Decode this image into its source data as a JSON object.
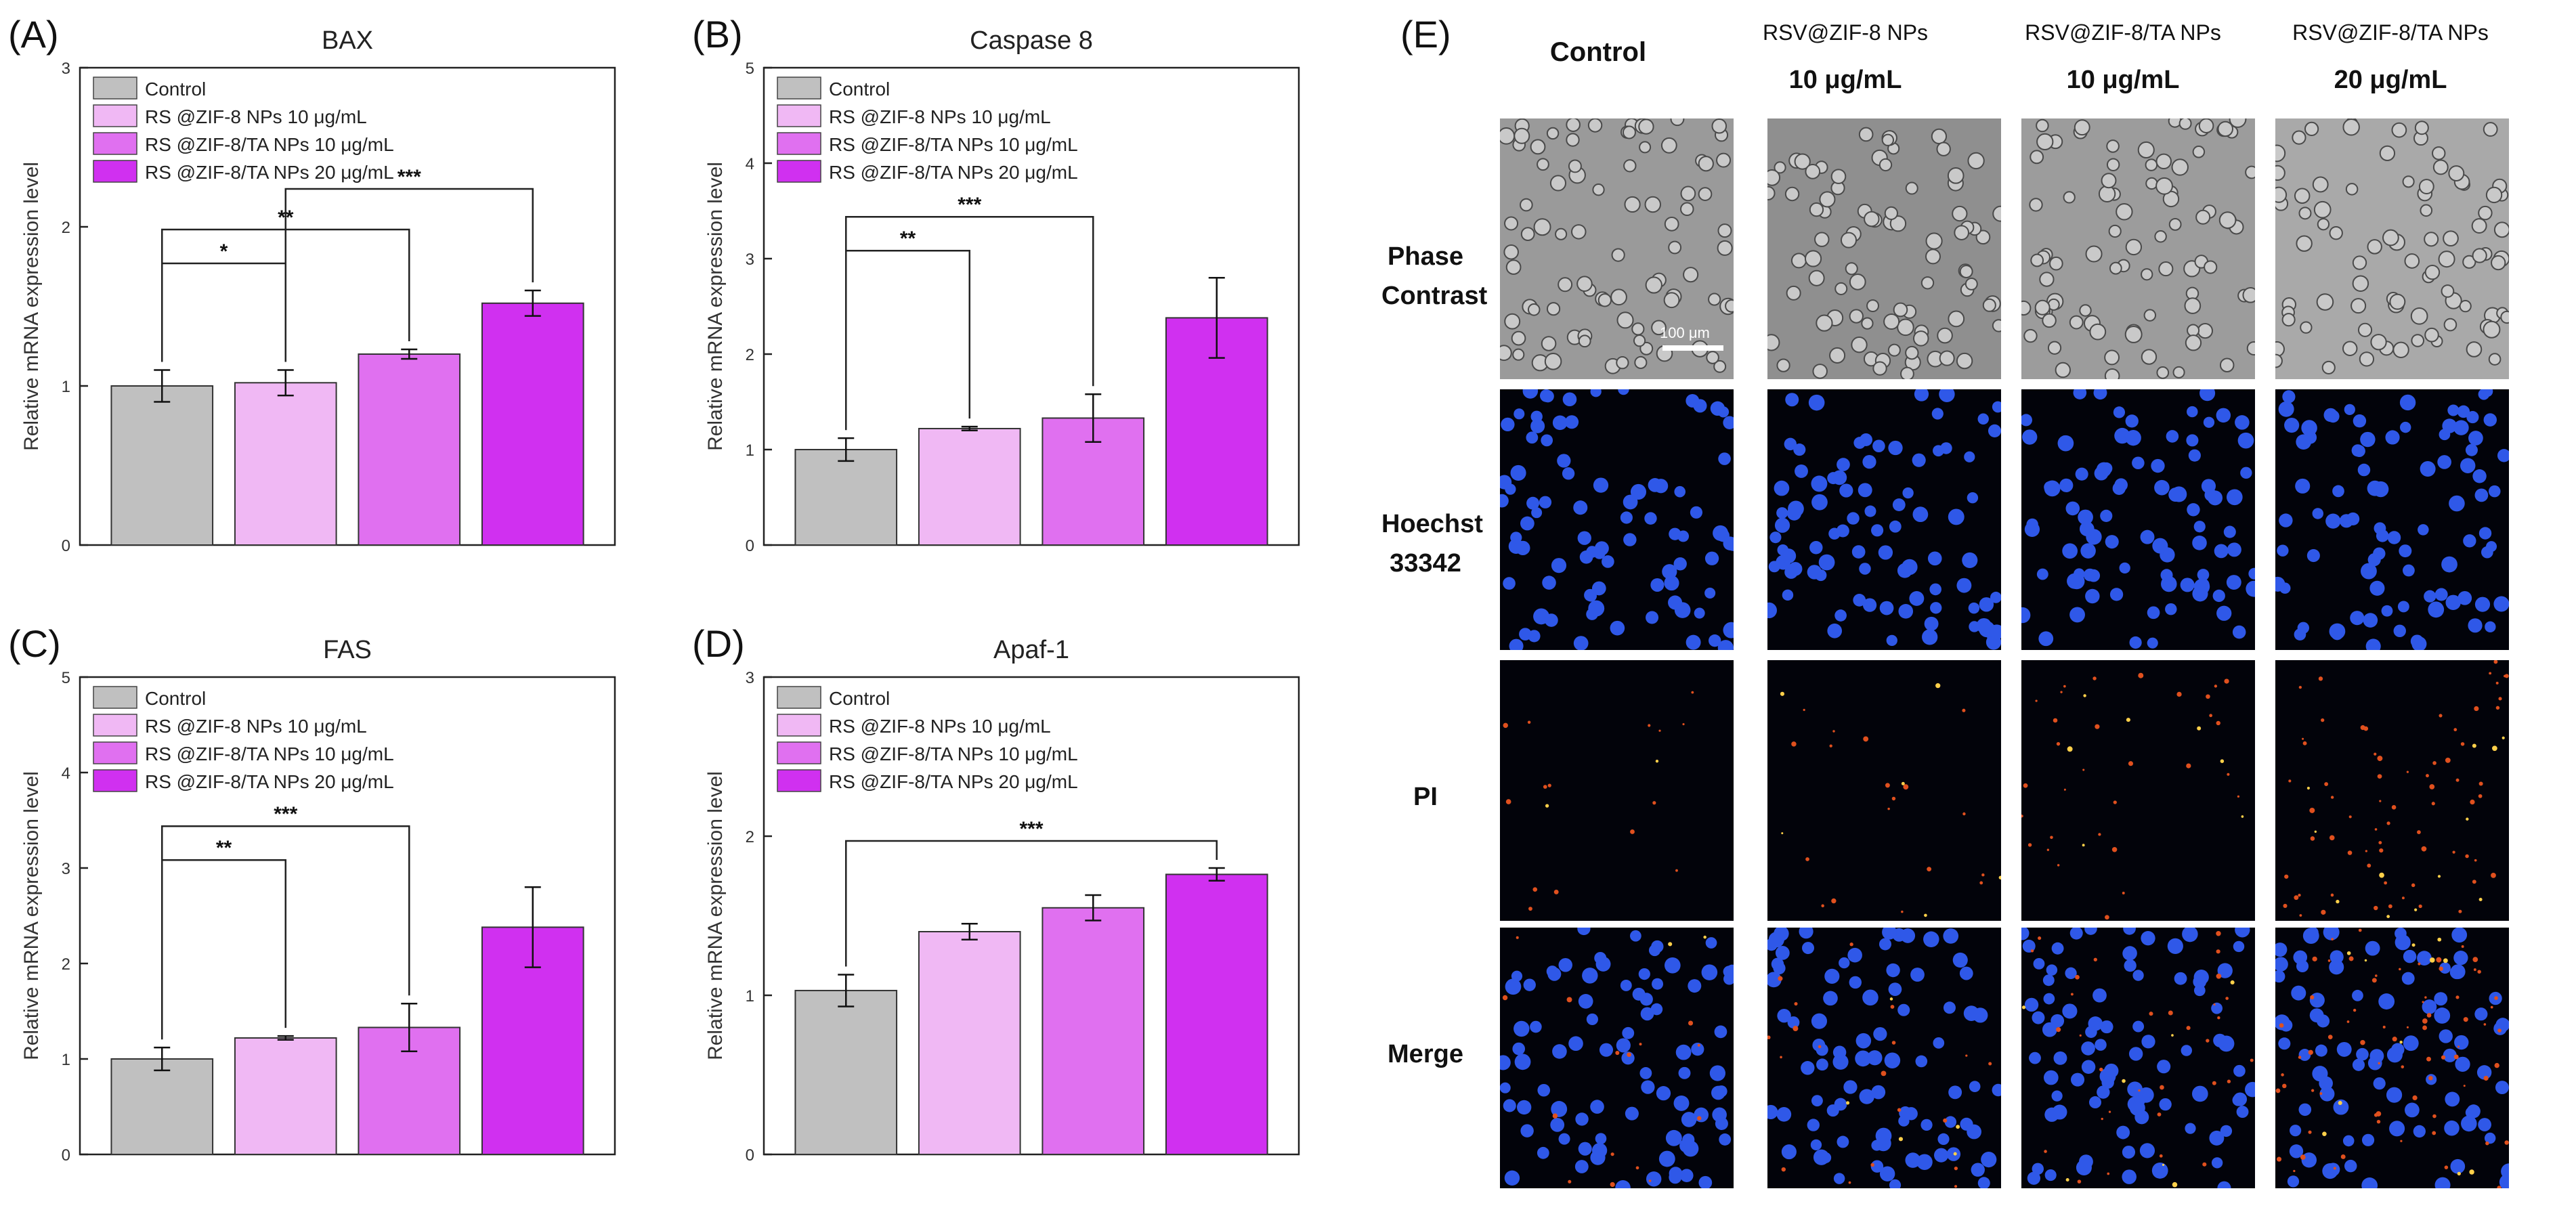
{
  "chart_data": [
    {
      "panel": "(A)",
      "type": "bar",
      "title": "BAX",
      "ylabel": "Relative mRNA expression level",
      "xlabel": "",
      "ylim": [
        0,
        3
      ],
      "yticks": [
        "0",
        "1",
        "2",
        "3"
      ],
      "categories": [
        "Control",
        "RS  @ZIF-8 NPs 10 μg/mL",
        "RS  @ZIF-8/TA NPs 10 μg/mL",
        "RS  @ZIF-8/TA NPs 20 μg/mL"
      ],
      "values": [
        1.0,
        1.02,
        1.2,
        1.52
      ],
      "errors": [
        0.1,
        0.08,
        0.03,
        0.08
      ],
      "colors": [
        "#c0c0c0",
        "#f0b8f4",
        "#e070f0",
        "#d030f0"
      ],
      "legend": [
        "Control",
        "RS  @ZIF-8 NPs 10 μg/mL",
        "RS  @ZIF-8/TA NPs 10 μg/mL",
        "RS  @ZIF-8/TA NPs 20 μg/mL"
      ],
      "legend_position": "top-left",
      "significance": [
        {
          "from": 0,
          "to": 1,
          "label": "*"
        },
        {
          "from": 0,
          "to": 2,
          "label": "**"
        },
        {
          "from": 1,
          "to": 3,
          "label": "***"
        }
      ]
    },
    {
      "panel": "(B)",
      "type": "bar",
      "title": "Caspase 8",
      "ylabel": "Relative mRNA expression level",
      "xlabel": "",
      "ylim": [
        0,
        5
      ],
      "yticks": [
        "0",
        "1",
        "2",
        "3",
        "4",
        "5"
      ],
      "categories": [
        "Control",
        "RS  @ZIF-8 NPs 10 μg/mL",
        "RS  @ZIF-8/TA NPs 10 μg/mL",
        "RS  @ZIF-8/TA NPs 20 μg/mL"
      ],
      "values": [
        1.0,
        1.22,
        1.33,
        2.38
      ],
      "errors": [
        0.12,
        0.02,
        0.25,
        0.42
      ],
      "colors": [
        "#c0c0c0",
        "#f0b8f4",
        "#e070f0",
        "#d030f0"
      ],
      "legend": [
        "Control",
        "RS  @ZIF-8 NPs 10 μg/mL",
        "RS  @ZIF-8/TA NPs 10 μg/mL",
        "RS  @ZIF-8/TA NPs 20 μg/mL"
      ],
      "legend_position": "top-left",
      "significance": [
        {
          "from": 0,
          "to": 1,
          "label": "**"
        },
        {
          "from": 0,
          "to": 2,
          "label": "***"
        }
      ]
    },
    {
      "panel": "(C)",
      "type": "bar",
      "title": "FAS",
      "ylabel": "Relative mRNA expression level",
      "xlabel": "",
      "ylim": [
        0,
        5
      ],
      "yticks": [
        "0",
        "1",
        "2",
        "3",
        "4",
        "5"
      ],
      "categories": [
        "Control",
        "RS  @ZIF-8 NPs 10 μg/mL",
        "RS  @ZIF-8/TA NPs 10 μg/mL",
        "RS  @ZIF-8/TA NPs 20 μg/mL"
      ],
      "values": [
        1.0,
        1.22,
        1.33,
        2.38
      ],
      "errors": [
        0.12,
        0.02,
        0.25,
        0.42
      ],
      "colors": [
        "#c0c0c0",
        "#f0b8f4",
        "#e070f0",
        "#d030f0"
      ],
      "legend": [
        "Control",
        "RS  @ZIF-8 NPs 10 μg/mL",
        "RS  @ZIF-8/TA NPs 10 μg/mL",
        "RS  @ZIF-8/TA NPs 20 μg/mL"
      ],
      "legend_position": "top-left",
      "significance": [
        {
          "from": 0,
          "to": 1,
          "label": "**"
        },
        {
          "from": 0,
          "to": 2,
          "label": "***"
        }
      ]
    },
    {
      "panel": "(D)",
      "type": "bar",
      "title": "Apaf-1",
      "ylabel": "Relative mRNA expression level",
      "xlabel": "",
      "ylim": [
        0,
        3
      ],
      "yticks": [
        "0",
        "1",
        "2",
        "3"
      ],
      "categories": [
        "Control",
        "RS  @ZIF-8 NPs 10 μg/mL",
        "RS  @ZIF-8/TA NPs 10 μg/mL",
        "RS  @ZIF-8/TA NPs 20 μg/mL"
      ],
      "values": [
        1.03,
        1.4,
        1.55,
        1.76
      ],
      "errors": [
        0.1,
        0.05,
        0.08,
        0.04
      ],
      "colors": [
        "#c0c0c0",
        "#f0b8f4",
        "#e070f0",
        "#d030f0"
      ],
      "legend": [
        "Control",
        "RS  @ZIF-8 NPs 10 μg/mL",
        "RS  @ZIF-8/TA NPs 10 μg/mL",
        "RS  @ZIF-8/TA NPs 20 μg/mL"
      ],
      "legend_position": "top-left",
      "significance": [
        {
          "from": 0,
          "to": 3,
          "label": "***"
        }
      ]
    }
  ],
  "panel_e": {
    "label": "(E)",
    "columns": [
      {
        "line1": "Control",
        "line2": ""
      },
      {
        "line1": "RSV@ZIF-8 NPs",
        "line2": "10 μg/mL"
      },
      {
        "line1": "RSV@ZIF-8/TA NPs",
        "line2": "10 μg/mL"
      },
      {
        "line1": "RSV@ZIF-8/TA NPs",
        "line2": "20 μg/mL"
      }
    ],
    "rows": [
      "Phase\nContrast",
      "Hoechst\n33342",
      "PI",
      "Merge"
    ],
    "scale_bar": "100 μm",
    "pi_intensity": [
      0.1,
      0.2,
      0.4,
      1.0
    ]
  }
}
